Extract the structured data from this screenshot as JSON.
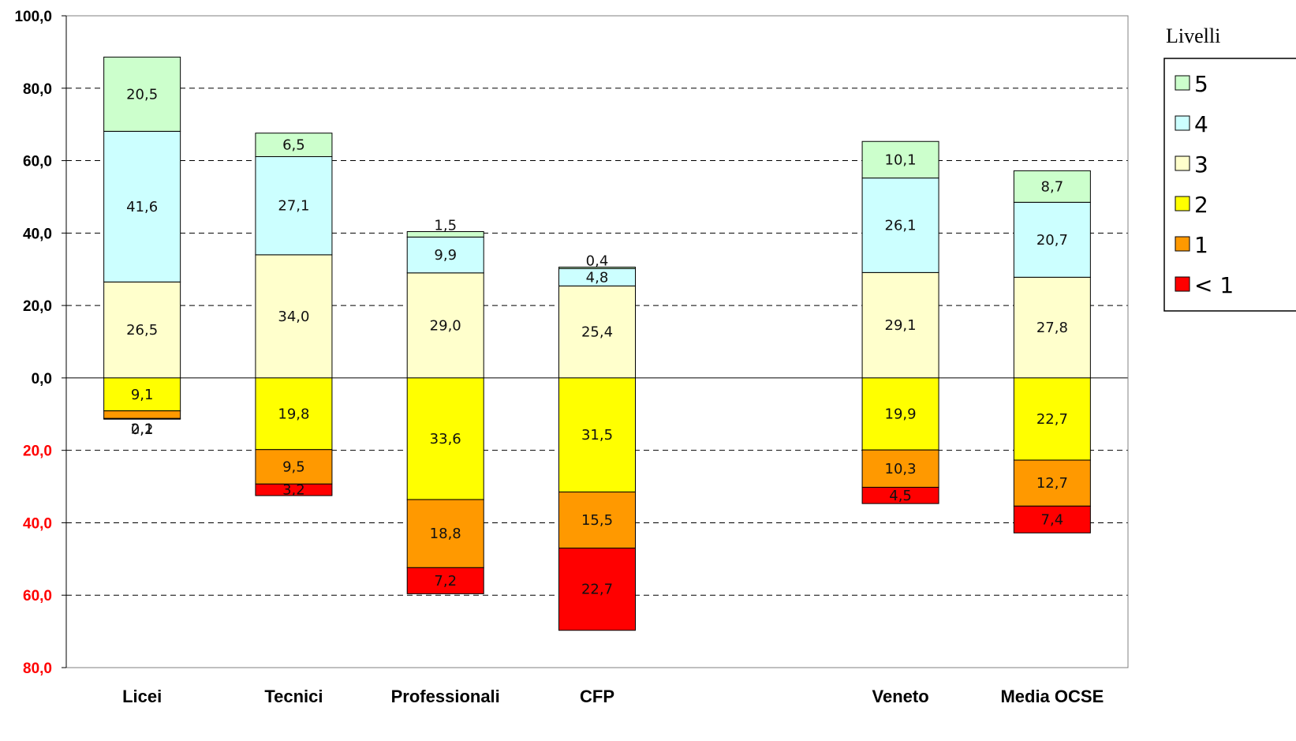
{
  "chart_data": {
    "type": "bar",
    "stacked": "diverging",
    "categories": [
      "Licei",
      "Tecnici",
      "Professionali",
      "CFP",
      "",
      "Veneto",
      "Media OCSE"
    ],
    "series": [
      {
        "name": "5",
        "color": "#ccffcc",
        "direction": "up",
        "values": [
          20.5,
          6.5,
          1.5,
          0.4,
          null,
          10.1,
          8.7
        ],
        "labels": [
          "20,5",
          "6,5",
          "1,5",
          "0,4",
          null,
          "10,1",
          "8,7"
        ]
      },
      {
        "name": "4",
        "color": "#ccffff",
        "direction": "up",
        "values": [
          41.6,
          27.1,
          9.9,
          4.8,
          null,
          26.1,
          20.7
        ],
        "labels": [
          "41,6",
          "27,1",
          "9,9",
          "4,8",
          null,
          "26,1",
          "20,7"
        ]
      },
      {
        "name": "3",
        "color": "#ffffcc",
        "direction": "up",
        "values": [
          26.5,
          34.0,
          29.0,
          25.4,
          null,
          29.1,
          27.8
        ],
        "labels": [
          "26,5",
          "34,0",
          "29,0",
          "25,4",
          null,
          "29,1",
          "27,8"
        ]
      },
      {
        "name": "2",
        "color": "#ffff00",
        "direction": "down",
        "values": [
          9.1,
          19.8,
          33.6,
          31.5,
          null,
          19.9,
          22.7
        ],
        "labels": [
          "9,1",
          "19,8",
          "33,6",
          "31,5",
          null,
          "19,9",
          "22,7"
        ]
      },
      {
        "name": "1",
        "color": "#ff9900",
        "direction": "down",
        "values": [
          2.1,
          9.5,
          18.8,
          15.5,
          null,
          10.3,
          12.7
        ],
        "labels": [
          "2,1",
          "9,5",
          "18,8",
          "15,5",
          null,
          "10,3",
          "12,7"
        ]
      },
      {
        "name": "< 1",
        "color": "#ff0000",
        "direction": "down",
        "values": [
          0.2,
          3.2,
          7.2,
          22.7,
          null,
          4.5,
          7.4
        ],
        "labels": [
          "0,2",
          "3,2",
          "7,2",
          "22,7",
          null,
          "4,5",
          "7,4"
        ]
      }
    ],
    "ylim": [
      -80,
      100
    ],
    "yticks": [
      {
        "value": 100,
        "label": "100,0",
        "color": "#000000"
      },
      {
        "value": 80,
        "label": "80,0",
        "color": "#000000"
      },
      {
        "value": 60,
        "label": "60,0",
        "color": "#000000"
      },
      {
        "value": 40,
        "label": "40,0",
        "color": "#000000"
      },
      {
        "value": 20,
        "label": "20,0",
        "color": "#000000"
      },
      {
        "value": 0,
        "label": "0,0",
        "color": "#000000"
      },
      {
        "value": -20,
        "label": "20,0",
        "color": "#ff0000"
      },
      {
        "value": -40,
        "label": "40,0",
        "color": "#ff0000"
      },
      {
        "value": -60,
        "label": "60,0",
        "color": "#ff0000"
      },
      {
        "value": -80,
        "label": "80,0",
        "color": "#ff0000"
      }
    ],
    "grid": true,
    "legend": {
      "title": "Livelli",
      "position": "right"
    },
    "title": "",
    "xlabel": "",
    "ylabel": ""
  }
}
